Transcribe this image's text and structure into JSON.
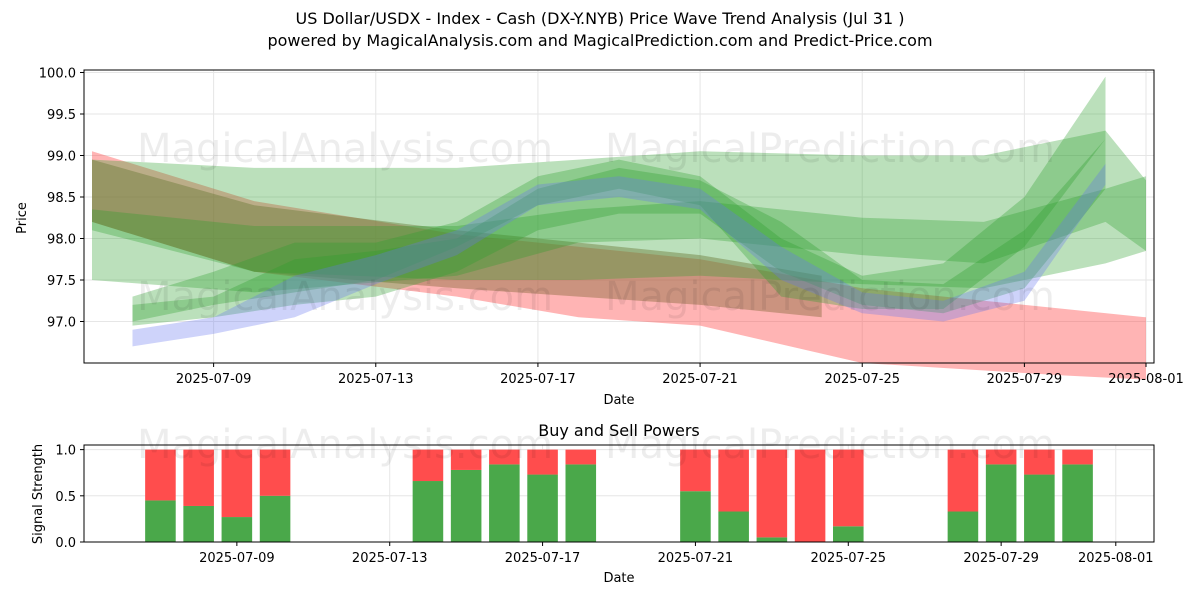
{
  "title_line1": "US Dollar/USDX - Index - Cash (DX-Y.NYB) Price Wave Trend Analysis (Jul 31 )",
  "title_line2": "powered by MagicalAnalysis.com and MagicalPrediction.com and Predict-Price.com",
  "watermarks": [
    "MagicalAnalysis.com",
    "MagicalPrediction.com"
  ],
  "colors": {
    "green_band": "#2ca02c",
    "red_band": "#ff4d4d",
    "brown_band": "#8b6a3e",
    "blue_band": "#6677ee",
    "buy": "#4aa84a",
    "sell": "#ff4d4d"
  },
  "chart_data": [
    {
      "type": "area",
      "xlabel": "Date",
      "ylabel": "Price",
      "x_range": [
        "2025-07-06",
        "2025-08-01"
      ],
      "ylim": [
        96.5,
        100.03
      ],
      "x_ticks": [
        "2025-07-09",
        "2025-07-13",
        "2025-07-17",
        "2025-07-21",
        "2025-07-25",
        "2025-07-29",
        "2025-08-01"
      ],
      "y_ticks": [
        97.0,
        97.5,
        98.0,
        98.5,
        99.0,
        99.5,
        100.0
      ],
      "grid": true,
      "bands": [
        {
          "color": "red",
          "x": [
            "2025-07-06",
            "2025-07-10",
            "2025-07-15",
            "2025-07-18",
            "2025-07-21",
            "2025-07-25",
            "2025-07-30",
            "2025-08-01"
          ],
          "upper": [
            99.05,
            98.45,
            98.05,
            97.9,
            97.75,
            97.4,
            97.15,
            97.05
          ],
          "lower": [
            98.2,
            97.6,
            97.3,
            97.05,
            96.95,
            96.5,
            96.35,
            96.3
          ]
        },
        {
          "color": "brown",
          "x": [
            "2025-07-06",
            "2025-07-10",
            "2025-07-15",
            "2025-07-18",
            "2025-07-21",
            "2025-07-24"
          ],
          "upper": [
            98.95,
            98.4,
            98.1,
            97.95,
            97.8,
            97.55
          ],
          "lower": [
            98.2,
            97.6,
            97.4,
            97.3,
            97.2,
            97.05
          ]
        },
        {
          "color": "green",
          "x": [
            "2025-07-06",
            "2025-07-10",
            "2025-07-15",
            "2025-07-18",
            "2025-07-21",
            "2025-07-25",
            "2025-07-28",
            "2025-07-31",
            "2025-08-01"
          ],
          "upper": [
            98.95,
            98.85,
            98.85,
            98.95,
            99.05,
            99.0,
            99.0,
            99.3,
            98.7
          ],
          "lower": [
            98.1,
            97.6,
            97.5,
            97.5,
            97.55,
            97.45,
            97.4,
            97.7,
            97.85
          ]
        },
        {
          "color": "green",
          "x": [
            "2025-07-06",
            "2025-07-10",
            "2025-07-15",
            "2025-07-18",
            "2025-07-21",
            "2025-07-25",
            "2025-07-28",
            "2025-07-31",
            "2025-08-01"
          ],
          "upper": [
            98.35,
            98.15,
            98.15,
            98.35,
            98.45,
            98.25,
            98.2,
            98.6,
            98.75
          ],
          "lower": [
            97.5,
            97.35,
            97.55,
            97.95,
            98.0,
            97.8,
            97.7,
            98.2,
            97.85
          ]
        },
        {
          "color": "green",
          "x": [
            "2025-07-07",
            "2025-07-09",
            "2025-07-11",
            "2025-07-13",
            "2025-07-15",
            "2025-07-17",
            "2025-07-19",
            "2025-07-21",
            "2025-07-23",
            "2025-07-25",
            "2025-07-27",
            "2025-07-29",
            "2025-07-31"
          ],
          "upper": [
            97.2,
            97.3,
            97.75,
            97.85,
            98.0,
            98.6,
            98.85,
            98.7,
            98.2,
            97.5,
            97.45,
            98.1,
            99.2
          ],
          "lower": [
            96.95,
            97.05,
            97.2,
            97.3,
            97.6,
            98.1,
            98.3,
            98.3,
            97.6,
            97.2,
            97.1,
            97.4,
            98.6
          ]
        },
        {
          "color": "green",
          "x": [
            "2025-07-07",
            "2025-07-09",
            "2025-07-11",
            "2025-07-13",
            "2025-07-15",
            "2025-07-17",
            "2025-07-19",
            "2025-07-21",
            "2025-07-23",
            "2025-07-25",
            "2025-07-27",
            "2025-07-29",
            "2025-07-31"
          ],
          "upper": [
            97.3,
            97.6,
            97.95,
            97.95,
            98.2,
            98.75,
            98.95,
            98.75,
            98.0,
            97.55,
            97.7,
            98.5,
            99.95
          ],
          "lower": [
            97.0,
            97.2,
            97.35,
            97.5,
            97.9,
            98.4,
            98.6,
            98.4,
            97.3,
            97.15,
            97.15,
            97.9,
            99.2
          ]
        },
        {
          "color": "blue",
          "x": [
            "2025-07-07",
            "2025-07-09",
            "2025-07-11",
            "2025-07-13",
            "2025-07-15",
            "2025-07-17",
            "2025-07-19",
            "2025-07-21",
            "2025-07-23",
            "2025-07-25",
            "2025-07-27",
            "2025-07-29",
            "2025-07-31"
          ],
          "upper": [
            96.9,
            97.05,
            97.55,
            97.8,
            98.1,
            98.65,
            98.75,
            98.6,
            97.9,
            97.35,
            97.25,
            97.6,
            98.9
          ],
          "lower": [
            96.7,
            96.85,
            97.05,
            97.45,
            97.8,
            98.4,
            98.5,
            98.35,
            97.5,
            97.1,
            97.0,
            97.25,
            98.65
          ]
        }
      ]
    },
    {
      "type": "bar",
      "title": "Buy and Sell Powers",
      "xlabel": "Date",
      "ylabel": "Signal Strength",
      "ylim": [
        0,
        1.05
      ],
      "y_ticks": [
        0.0,
        0.5,
        1.0
      ],
      "x_ticks": [
        "2025-07-09",
        "2025-07-13",
        "2025-07-17",
        "2025-07-21",
        "2025-07-25",
        "2025-07-29",
        "2025-08-01"
      ],
      "grid": true,
      "dates": [
        "2025-07-07",
        "2025-07-08",
        "2025-07-09",
        "2025-07-10",
        "2025-07-14",
        "2025-07-15",
        "2025-07-16",
        "2025-07-17",
        "2025-07-18",
        "2025-07-21",
        "2025-07-22",
        "2025-07-23",
        "2025-07-24",
        "2025-07-25",
        "2025-07-28",
        "2025-07-29",
        "2025-07-30",
        "2025-07-31"
      ],
      "series": [
        {
          "name": "Buy",
          "values": [
            0.45,
            0.39,
            0.27,
            0.5,
            0.66,
            0.78,
            0.84,
            0.73,
            0.84,
            0.55,
            0.33,
            0.05,
            0.0,
            0.17,
            0.33,
            0.84,
            0.73,
            0.84
          ]
        },
        {
          "name": "Sell",
          "values": [
            0.55,
            0.61,
            0.73,
            0.5,
            0.34,
            0.22,
            0.16,
            0.27,
            0.16,
            0.45,
            0.67,
            0.95,
            1.0,
            0.83,
            0.67,
            0.16,
            0.27,
            0.16
          ]
        }
      ]
    }
  ]
}
